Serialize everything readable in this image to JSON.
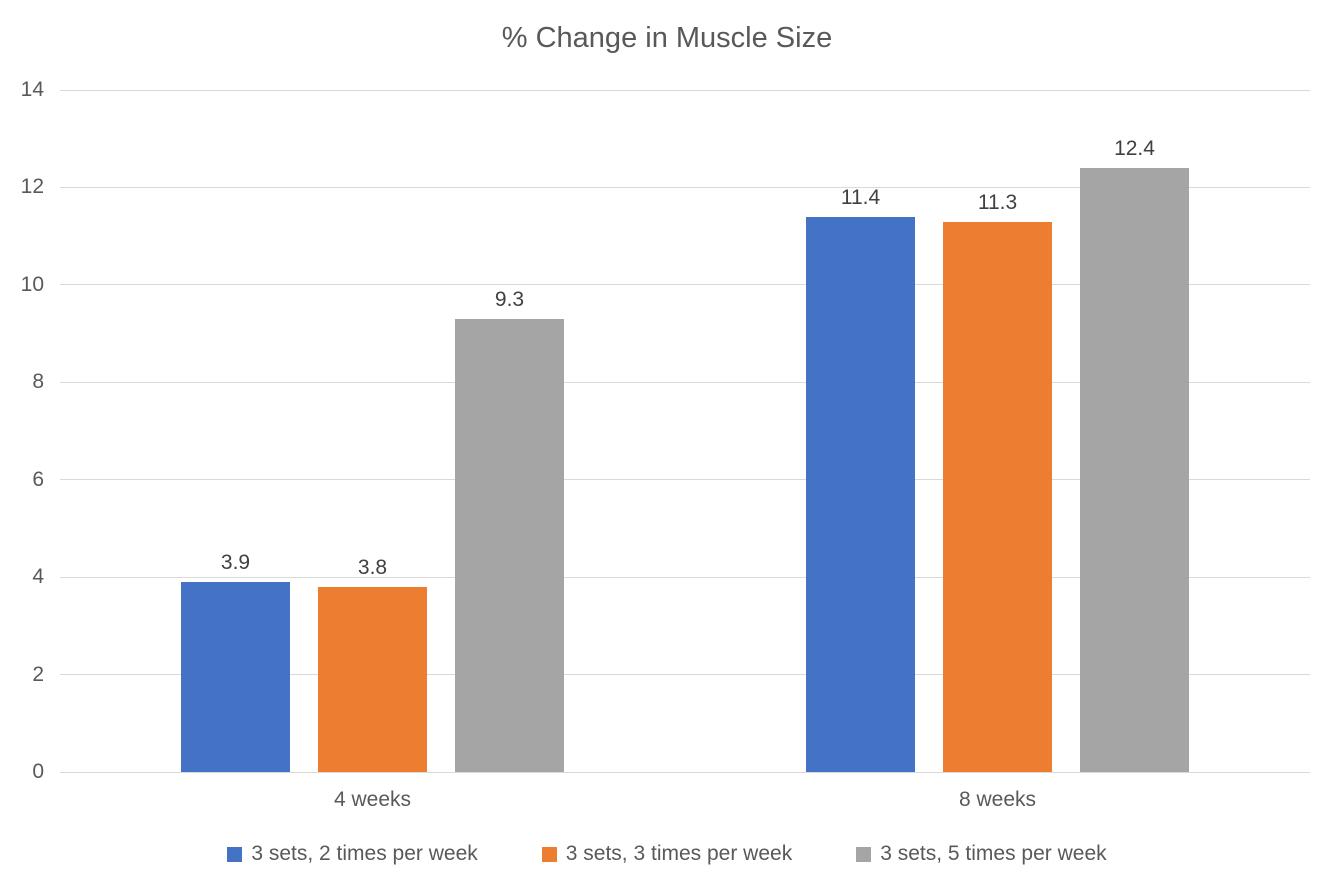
{
  "chart_data": {
    "type": "bar",
    "title": "% Change in Muscle Size",
    "categories": [
      "4 weeks",
      "8 weeks"
    ],
    "series": [
      {
        "name": "3 sets, 2 times per week",
        "color": "#4472C4",
        "values": [
          3.9,
          11.4
        ]
      },
      {
        "name": "3 sets, 3 times per week",
        "color": "#ED7D31",
        "values": [
          3.8,
          11.3
        ]
      },
      {
        "name": "3 sets, 5 times per week",
        "color": "#A5A5A5",
        "values": [
          9.3,
          12.4
        ]
      }
    ],
    "data_labels": [
      "3.9",
      "3.8",
      "9.3",
      "11.4",
      "11.3",
      "12.4"
    ],
    "xlabel": "",
    "ylabel": "",
    "ylim": [
      0,
      14
    ],
    "yticks": [
      "0",
      "2",
      "4",
      "6",
      "8",
      "10",
      "12",
      "14"
    ],
    "grid": true,
    "legend_position": "bottom",
    "colors": {
      "gridline": "#D9D9D9",
      "title_text": "#595959",
      "axis_text": "#595959",
      "data_label_text": "#404040",
      "background": "#FFFFFF"
    }
  }
}
